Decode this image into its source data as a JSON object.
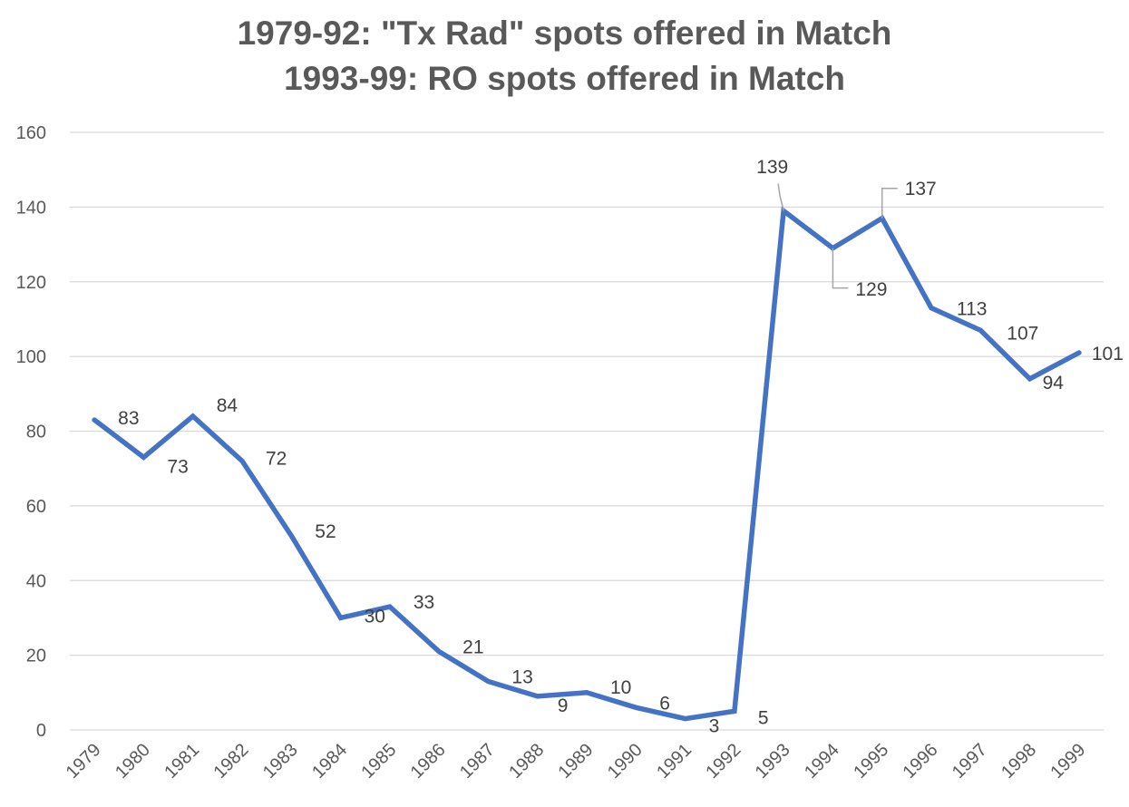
{
  "title_line1": "1979-92: \"Tx Rad\" spots offered in Match",
  "title_line2": "1993-99: RO spots offered in Match",
  "colors": {
    "line": "#4472C4",
    "grid": "#d9d9d9",
    "text": "#595959",
    "leader": "#a6a6a6"
  },
  "chart_data": {
    "type": "line",
    "title": "1979-92: \"Tx Rad\" spots offered in Match / 1993-99: RO spots offered in Match",
    "xlabel": "",
    "ylabel": "",
    "categories": [
      "1979",
      "1980",
      "1981",
      "1982",
      "1983",
      "1984",
      "1985",
      "1986",
      "1987",
      "1988",
      "1989",
      "1990",
      "1991",
      "1992",
      "1993",
      "1994",
      "1995",
      "1996",
      "1997",
      "1998",
      "1999"
    ],
    "values": [
      83,
      73,
      84,
      72,
      52,
      30,
      33,
      21,
      13,
      9,
      10,
      6,
      3,
      5,
      139,
      129,
      137,
      113,
      107,
      94,
      101
    ],
    "ylim": [
      0,
      160
    ],
    "yticks": [
      0,
      20,
      40,
      60,
      80,
      100,
      120,
      140,
      160
    ],
    "grid": true,
    "legend": "none",
    "data_labels": true
  }
}
